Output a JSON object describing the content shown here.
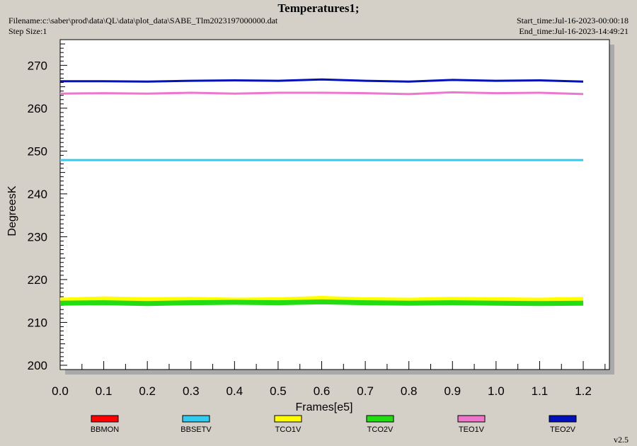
{
  "header": {
    "title": "Temperatures1;",
    "filename": "Filename:c:\\saber\\prod\\data\\QL\\data\\plot_data\\SABE_Tlm2023197000000.dat",
    "step_size": "Step Size:1",
    "start_time": "Start_time:Jul-16-2023-00:00:18",
    "end_time": "End_time:Jul-16-2023-14:49:21"
  },
  "version": "v2.5",
  "chart_data": {
    "type": "line",
    "xlabel": "Frames[e5]",
    "ylabel": "DegreesK",
    "xlim": [
      0.0,
      1.26
    ],
    "ylim": [
      199,
      276
    ],
    "xticks": [
      0.0,
      0.1,
      0.2,
      0.3,
      0.4,
      0.5,
      0.6,
      0.7,
      0.8,
      0.9,
      1.0,
      1.1,
      1.2
    ],
    "yticks": [
      200,
      210,
      220,
      230,
      240,
      250,
      260,
      270
    ],
    "legend_position": "bottom",
    "series": [
      {
        "name": "BBMON",
        "color": "#ff0000",
        "x": [],
        "y": []
      },
      {
        "name": "BBSETV",
        "color": "#33ccee",
        "x": [
          0.0,
          0.2,
          0.4,
          0.6,
          0.8,
          1.0,
          1.2
        ],
        "y": [
          247.9,
          247.9,
          247.9,
          247.9,
          247.9,
          247.9,
          247.9
        ]
      },
      {
        "name": "TCO1V",
        "color": "#ffff00",
        "x": [
          0.0,
          0.1,
          0.2,
          0.3,
          0.4,
          0.5,
          0.6,
          0.7,
          0.8,
          0.9,
          1.0,
          1.1,
          1.2
        ],
        "y": [
          215.2,
          215.5,
          215.3,
          215.4,
          215.2,
          215.3,
          215.6,
          215.3,
          215.2,
          215.4,
          215.3,
          215.2,
          215.4
        ]
      },
      {
        "name": "TCO2V",
        "color": "#22dd11",
        "x": [
          0.0,
          0.1,
          0.2,
          0.3,
          0.4,
          0.5,
          0.6,
          0.7,
          0.8,
          0.9,
          1.0,
          1.1,
          1.2
        ],
        "y": [
          214.5,
          214.6,
          214.4,
          214.6,
          214.7,
          214.6,
          214.8,
          214.6,
          214.5,
          214.6,
          214.5,
          214.4,
          214.5
        ]
      },
      {
        "name": "TEO1V",
        "color": "#ee77cc",
        "x": [
          0.0,
          0.1,
          0.2,
          0.3,
          0.4,
          0.5,
          0.6,
          0.7,
          0.8,
          0.9,
          1.0,
          1.1,
          1.2
        ],
        "y": [
          263.4,
          263.5,
          263.4,
          263.6,
          263.4,
          263.6,
          263.6,
          263.5,
          263.3,
          263.7,
          263.5,
          263.6,
          263.3
        ]
      },
      {
        "name": "TEO2V",
        "color": "#0011bb",
        "x": [
          0.0,
          0.1,
          0.2,
          0.3,
          0.4,
          0.5,
          0.6,
          0.7,
          0.8,
          0.9,
          1.0,
          1.1,
          1.2
        ],
        "y": [
          266.3,
          266.3,
          266.2,
          266.4,
          266.5,
          266.4,
          266.7,
          266.4,
          266.2,
          266.6,
          266.4,
          266.5,
          266.2
        ]
      }
    ]
  }
}
